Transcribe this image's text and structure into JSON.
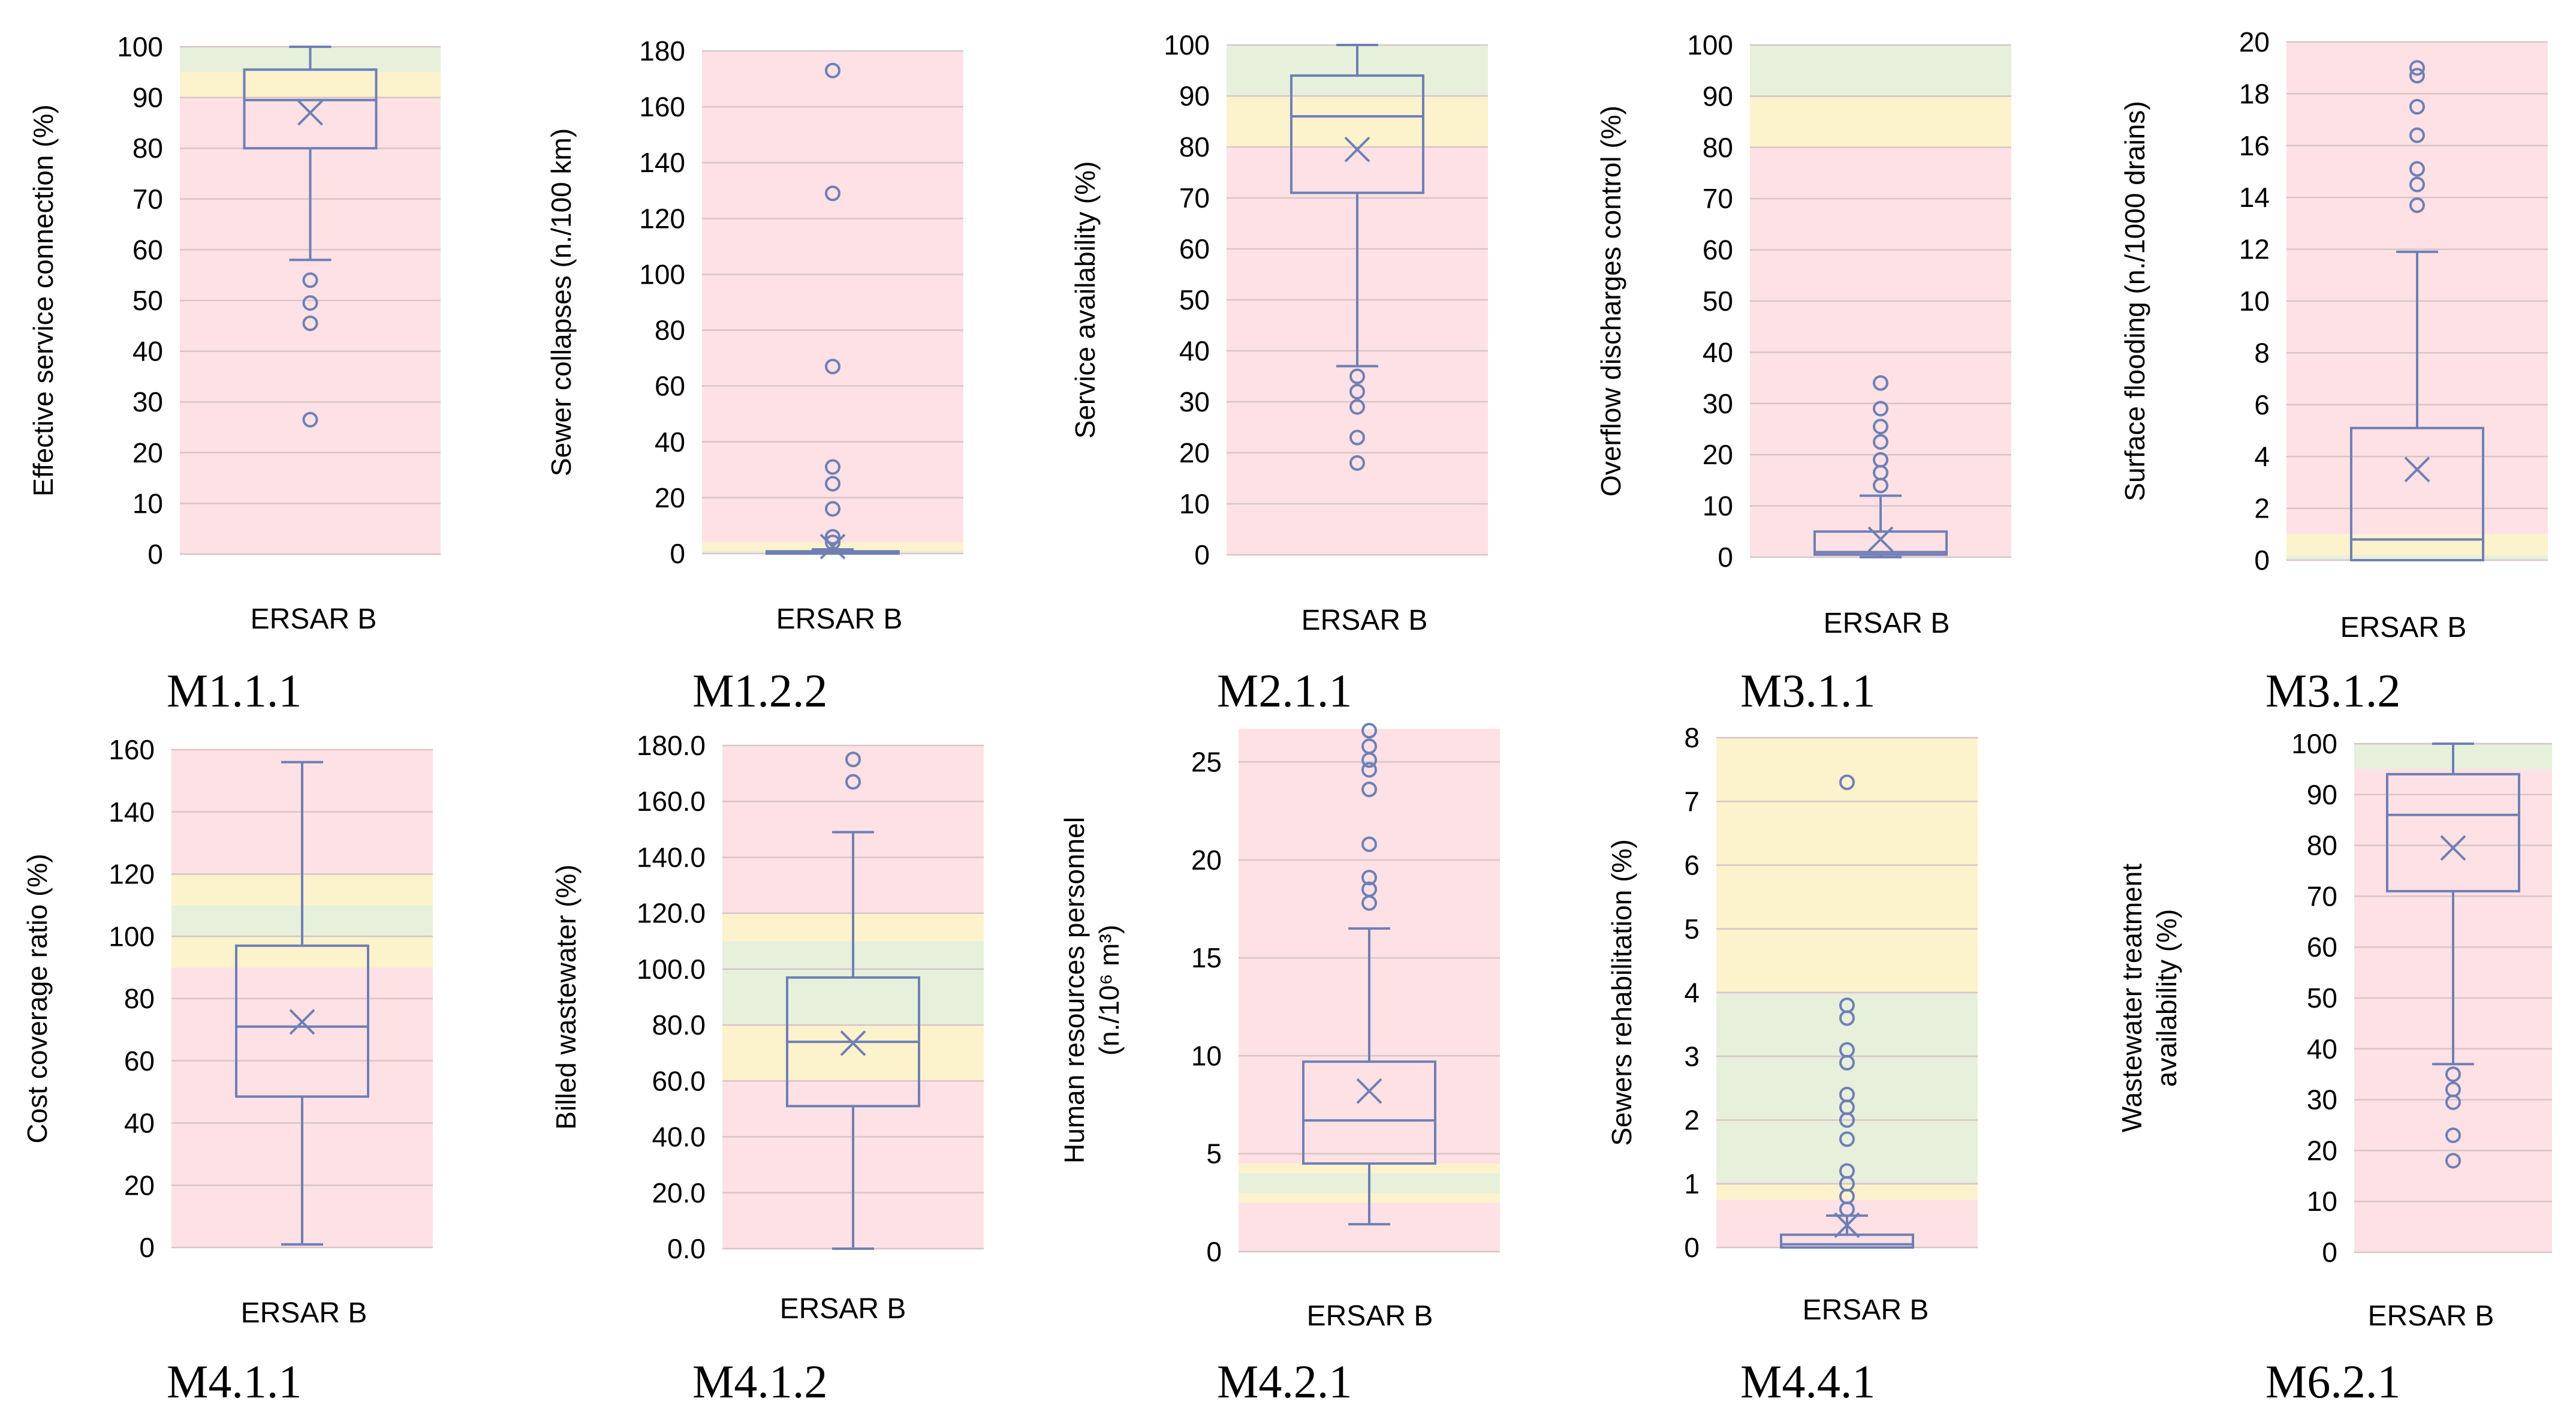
{
  "bands": {
    "good": "#e6f0db",
    "medium": "#fcf2cc",
    "bad": "#fde1e4"
  },
  "colors": {
    "box": "#6f7fb6",
    "grid": "#d7c5c8"
  },
  "chart_data": [
    {
      "type": "box",
      "code": "M1.1.1",
      "category": "ERSAR B",
      "ylabel_lines": [
        "Effective service connection (%)"
      ],
      "ylim": [
        0,
        100
      ],
      "ticks": [
        0,
        10,
        20,
        30,
        40,
        50,
        60,
        70,
        80,
        90,
        100
      ],
      "tick_labels": [
        "0",
        "10",
        "20",
        "30",
        "40",
        "50",
        "60",
        "70",
        "80",
        "90",
        "100"
      ],
      "bands": [
        {
          "from": 0,
          "to": 90,
          "quality": "bad"
        },
        {
          "from": 90,
          "to": 95,
          "quality": "medium"
        },
        {
          "from": 95,
          "to": 100,
          "quality": "good"
        }
      ],
      "whisker_low": 58,
      "q1": 80,
      "median": 89.5,
      "q3": 95.5,
      "whisker_high": 100,
      "mean": 87,
      "outliers": [
        54,
        49.5,
        45.5,
        26.5
      ]
    },
    {
      "type": "box",
      "code": "M1.2.2",
      "category": "ERSAR B",
      "ylabel_lines": [
        "Sewer collapses (n./100 km)"
      ],
      "ylim": [
        0,
        180
      ],
      "ticks": [
        0,
        20,
        40,
        60,
        80,
        100,
        120,
        140,
        160,
        180
      ],
      "tick_labels": [
        "0",
        "20",
        "40",
        "60",
        "80",
        "100",
        "120",
        "140",
        "160",
        "180"
      ],
      "bands": [
        {
          "from": 0,
          "to": 1,
          "quality": "good"
        },
        {
          "from": 1,
          "to": 4,
          "quality": "medium"
        },
        {
          "from": 4,
          "to": 180,
          "quality": "bad"
        }
      ],
      "whisker_low": 0,
      "q1": 0,
      "median": 0.2,
      "q3": 0.8,
      "whisker_high": 1.5,
      "mean": 2.5,
      "outliers": [
        173,
        129,
        67,
        31,
        25,
        16,
        6,
        4
      ]
    },
    {
      "type": "box",
      "code": "M2.1.1",
      "category": "ERSAR B",
      "ylabel_lines": [
        "Service availability  (%)"
      ],
      "ylim": [
        0,
        100
      ],
      "ticks": [
        0,
        10,
        20,
        30,
        40,
        50,
        60,
        70,
        80,
        90,
        100
      ],
      "tick_labels": [
        "0",
        "10",
        "20",
        "30",
        "40",
        "50",
        "60",
        "70",
        "80",
        "90",
        "100"
      ],
      "bands": [
        {
          "from": 0,
          "to": 80,
          "quality": "bad"
        },
        {
          "from": 80,
          "to": 90,
          "quality": "medium"
        },
        {
          "from": 90,
          "to": 100,
          "quality": "good"
        }
      ],
      "whisker_low": 37,
      "q1": 71,
      "median": 86,
      "q3": 94,
      "whisker_high": 100,
      "mean": 79.5,
      "outliers": [
        35,
        32,
        29,
        23,
        18
      ]
    },
    {
      "type": "box",
      "code": "M3.1.1",
      "category": "ERSAR B",
      "ylabel_lines": [
        "Overflow discharges control (%)"
      ],
      "ylim": [
        0,
        100
      ],
      "ticks": [
        0,
        10,
        20,
        30,
        40,
        50,
        60,
        70,
        80,
        90,
        100
      ],
      "tick_labels": [
        "0",
        "10",
        "20",
        "30",
        "40",
        "50",
        "60",
        "70",
        "80",
        "90",
        "100"
      ],
      "bands": [
        {
          "from": 0,
          "to": 80,
          "quality": "bad"
        },
        {
          "from": 80,
          "to": 90,
          "quality": "medium"
        },
        {
          "from": 90,
          "to": 100,
          "quality": "good"
        }
      ],
      "whisker_low": 0,
      "q1": 0.5,
      "median": 1,
      "q3": 5,
      "whisker_high": 12,
      "mean": 3.5,
      "outliers": [
        34,
        29,
        25.5,
        22.5,
        19,
        16.5,
        14
      ]
    },
    {
      "type": "box",
      "code": "M3.1.2",
      "category": "ERSAR B",
      "ylabel_lines": [
        "Surface flooding (n./1000 drains)"
      ],
      "ylim": [
        0,
        20
      ],
      "ticks": [
        0,
        2,
        4,
        6,
        8,
        10,
        12,
        14,
        16,
        18,
        20
      ],
      "tick_labels": [
        "0",
        "2",
        "4",
        "6",
        "8",
        "10",
        "12",
        "14",
        "16",
        "18",
        "20"
      ],
      "bands": [
        {
          "from": 0,
          "to": 0.2,
          "quality": "good"
        },
        {
          "from": 0.2,
          "to": 1,
          "quality": "medium"
        },
        {
          "from": 1,
          "to": 20,
          "quality": "bad"
        }
      ],
      "whisker_low": 0,
      "q1": 0,
      "median": 0.8,
      "q3": 5.1,
      "whisker_high": 11.9,
      "mean": 3.5,
      "outliers": [
        19,
        18.7,
        17.5,
        16.4,
        15.1,
        14.5,
        13.7
      ]
    },
    {
      "type": "box",
      "code": "M4.1.1",
      "category": "ERSAR B",
      "ylabel_lines": [
        "Cost coverage ratio (%)"
      ],
      "ylim": [
        0,
        160
      ],
      "ticks": [
        0,
        20,
        40,
        60,
        80,
        100,
        120,
        140,
        160
      ],
      "tick_labels": [
        "0",
        "20",
        "40",
        "60",
        "80",
        "100",
        "120",
        "140",
        "160"
      ],
      "bands": [
        {
          "from": 0,
          "to": 90,
          "quality": "bad"
        },
        {
          "from": 90,
          "to": 100,
          "quality": "medium"
        },
        {
          "from": 100,
          "to": 110,
          "quality": "good"
        },
        {
          "from": 110,
          "to": 120,
          "quality": "medium"
        },
        {
          "from": 120,
          "to": 160,
          "quality": "bad"
        }
      ],
      "whisker_low": 1,
      "q1": 48.5,
      "median": 71,
      "q3": 97,
      "whisker_high": 156,
      "mean": 72.5,
      "outliers": []
    },
    {
      "type": "box",
      "code": "M4.1.2",
      "category": "ERSAR B",
      "ylabel_lines": [
        "Billed wastewater (%)"
      ],
      "ylim": [
        0,
        180
      ],
      "ticks": [
        0,
        20,
        40,
        60,
        80,
        100,
        120,
        140,
        160,
        180
      ],
      "tick_labels": [
        "0.0",
        "20.0",
        "40.0",
        "60.0",
        "80.0",
        "100.0",
        "120.0",
        "140.0",
        "160.0",
        "180.0"
      ],
      "bands": [
        {
          "from": 0,
          "to": 60,
          "quality": "bad"
        },
        {
          "from": 60,
          "to": 80,
          "quality": "medium"
        },
        {
          "from": 80,
          "to": 110,
          "quality": "good"
        },
        {
          "from": 110,
          "to": 120,
          "quality": "medium"
        },
        {
          "from": 120,
          "to": 180,
          "quality": "bad"
        }
      ],
      "whisker_low": 0,
      "q1": 51,
      "median": 74,
      "q3": 97,
      "whisker_high": 149,
      "mean": 73.5,
      "outliers": [
        175,
        167
      ]
    },
    {
      "type": "box",
      "code": "M4.2.1",
      "category": "ERSAR B",
      "ylabel_lines": [
        "Human resources personnel",
        "(n./10⁶ m³)"
      ],
      "ylim": [
        0,
        26.7
      ],
      "ticks": [
        0,
        5,
        10,
        15,
        20,
        25
      ],
      "tick_labels": [
        "0",
        "5",
        "10",
        "15",
        "20",
        "25"
      ],
      "bands": [
        {
          "from": 0,
          "to": 2.5,
          "quality": "bad"
        },
        {
          "from": 2.5,
          "to": 3,
          "quality": "medium"
        },
        {
          "from": 3,
          "to": 4,
          "quality": "good"
        },
        {
          "from": 4,
          "to": 4.5,
          "quality": "medium"
        },
        {
          "from": 4.5,
          "to": 26.7,
          "quality": "bad"
        }
      ],
      "whisker_low": 1.4,
      "q1": 4.5,
      "median": 6.7,
      "q3": 9.7,
      "whisker_high": 16.5,
      "mean": 8.2,
      "outliers": [
        26.6,
        25.8,
        25.1,
        24.6,
        23.6,
        20.8,
        19.1,
        18.5,
        17.8
      ]
    },
    {
      "type": "box",
      "code": "M4.4.1",
      "category": "ERSAR B",
      "ylabel_lines": [
        "Sewers rehabilitation (%)"
      ],
      "ylim": [
        0,
        8
      ],
      "ticks": [
        0,
        1,
        2,
        3,
        4,
        5,
        6,
        7,
        8
      ],
      "tick_labels": [
        "0",
        "1",
        "2",
        "3",
        "4",
        "5",
        "6",
        "7",
        "8"
      ],
      "bands": [
        {
          "from": 0,
          "to": 0.75,
          "quality": "bad"
        },
        {
          "from": 0.75,
          "to": 1,
          "quality": "medium"
        },
        {
          "from": 1,
          "to": 4,
          "quality": "good"
        },
        {
          "from": 4,
          "to": 8,
          "quality": "medium"
        }
      ],
      "whisker_low": 0,
      "q1": 0,
      "median": 0.05,
      "q3": 0.2,
      "whisker_high": 0.5,
      "mean": 0.35,
      "outliers": [
        7.3,
        3.8,
        3.6,
        3.1,
        2.9,
        2.4,
        2.2,
        2.0,
        1.7,
        1.2,
        1.0,
        0.8,
        0.6
      ]
    },
    {
      "type": "box",
      "code": "M6.2.1",
      "category": "ERSAR B",
      "ylabel_lines": [
        "Wastewater treatment",
        "availability (%)"
      ],
      "ylim": [
        0,
        100
      ],
      "ticks": [
        0,
        10,
        20,
        30,
        40,
        50,
        60,
        70,
        80,
        90,
        100
      ],
      "tick_labels": [
        "0",
        "10",
        "20",
        "30",
        "40",
        "50",
        "60",
        "70",
        "80",
        "90",
        "100"
      ],
      "bands": [
        {
          "from": 0,
          "to": 95,
          "quality": "bad"
        },
        {
          "from": 95,
          "to": 100,
          "quality": "good"
        }
      ],
      "whisker_low": 37,
      "q1": 71,
      "median": 86,
      "q3": 94,
      "whisker_high": 100,
      "mean": 79.5,
      "outliers": [
        35,
        32,
        29.5,
        23,
        18
      ]
    }
  ]
}
